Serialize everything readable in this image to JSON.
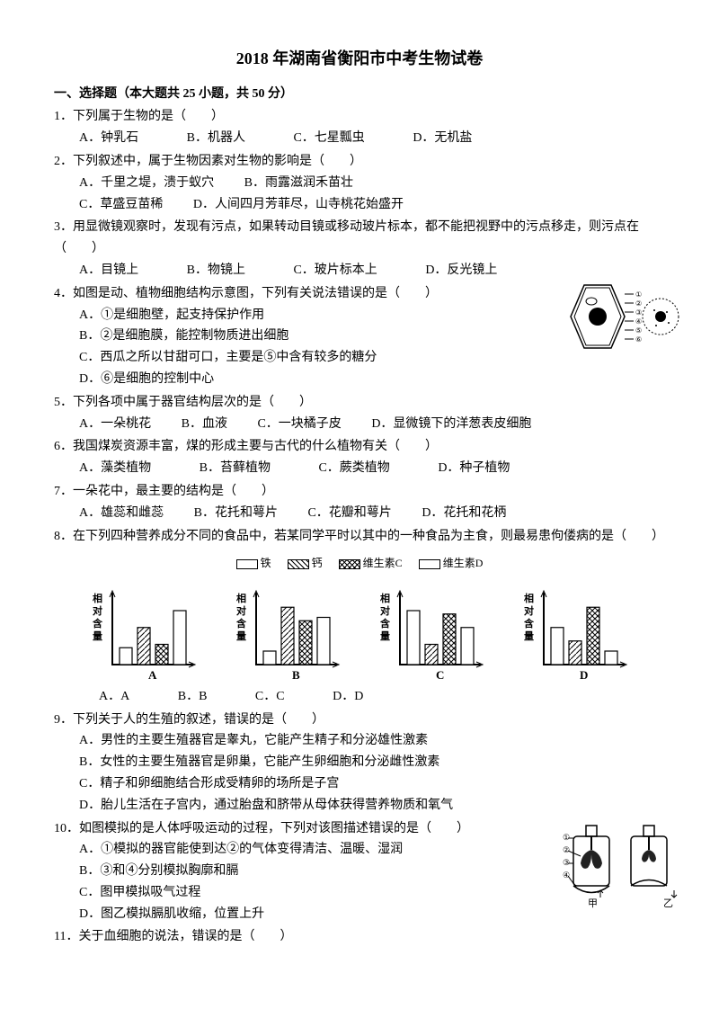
{
  "title": "2018 年湖南省衡阳市中考生物试卷",
  "section1": {
    "header": "一、选择题（本大题共 25 小题，共 50 分）"
  },
  "q1": {
    "text": "1．下列属于生物的是（　　）",
    "a": "A．钟乳石",
    "b": "B．机器人",
    "c": "C．七星瓢虫",
    "d": "D．无机盐"
  },
  "q2": {
    "text": "2．下列叙述中，属于生物因素对生物的影响是（　　）",
    "a": "A．千里之堤，溃于蚁穴",
    "b": "B．雨露滋润禾苗壮",
    "c": "C．草盛豆苗稀",
    "d": "D．人间四月芳菲尽，山寺桃花始盛开"
  },
  "q3": {
    "text": "3．用显微镜观察时，发现有污点，如果转动目镜或移动玻片标本，都不能把视野中的污点移走，则污点在（　　）",
    "a": "A．目镜上",
    "b": "B．物镜上",
    "c": "C．玻片标本上",
    "d": "D．反光镜上"
  },
  "q4": {
    "text": "4．如图是动、植物细胞结构示意图，下列有关说法错误的是（　　）",
    "a": "A．①是细胞壁，起支持保护作用",
    "b": "B．②是细胞膜，能控制物质进出细胞",
    "c": "C．西瓜之所以甘甜可口，主要是⑤中含有较多的糖分",
    "d": "D．⑥是细胞的控制中心"
  },
  "q5": {
    "text": "5．下列各项中属于器官结构层次的是（　　）",
    "a": "A．一朵桃花",
    "b": "B．血液",
    "c": "C．一块橘子皮",
    "d": "D．显微镜下的洋葱表皮细胞"
  },
  "q6": {
    "text": "6．我国煤炭资源丰富，煤的形成主要与古代的什么植物有关（　　）",
    "a": "A．藻类植物",
    "b": "B．苔藓植物",
    "c": "C．蕨类植物",
    "d": "D．种子植物"
  },
  "q7": {
    "text": "7．一朵花中，最主要的结构是（　　）",
    "a": "A．雄蕊和雌蕊",
    "b": "B．花托和萼片",
    "c": "C．花瓣和萼片",
    "d": "D．花托和花柄"
  },
  "q8": {
    "text": "8．在下列四种营养成分不同的食品中，若某同学平时以其中的一种食品为主食，则最易患佝偻病的是（　　）",
    "a": "A．A",
    "b": "B．B",
    "c": "C．C",
    "d": "D．D"
  },
  "legend": {
    "iron": "铁",
    "calcium": "钙",
    "vitc": "维生素C",
    "vitd": "维生素D"
  },
  "chart_labels": {
    "ylabel": "相对含量",
    "a": "A",
    "b": "B",
    "c": "C",
    "d": "D"
  },
  "charts": {
    "type": "bar",
    "ylim": [
      0,
      100
    ],
    "bar_patterns": [
      "solid-white",
      "diagonal-hatch",
      "crosshatch",
      "solid-white"
    ],
    "series": {
      "A": [
        25,
        55,
        30,
        80
      ],
      "B": [
        20,
        85,
        65,
        70
      ],
      "C": [
        80,
        30,
        75,
        55
      ],
      "D": [
        55,
        35,
        85,
        20
      ]
    },
    "axis_color": "#000000",
    "bar_border_color": "#000000",
    "background_color": "#ffffff"
  },
  "q9": {
    "text": "9．下列关于人的生殖的叙述，错误的是（　　）",
    "a": "A．男性的主要生殖器官是睾丸，它能产生精子和分泌雄性激素",
    "b": "B．女性的主要生殖器官是卵巢，它能产生卵细胞和分泌雌性激素",
    "c": "C．精子和卵细胞结合形成受精卵的场所是子宫",
    "d": "D．胎儿生活在子宫内，通过胎盘和脐带从母体获得营养物质和氧气"
  },
  "q10": {
    "text": "10．如图模拟的是人体呼吸运动的过程，下列对该图描述错误的是（　　）",
    "a": "A．①模拟的器官能使到达②的气体变得清洁、温暖、湿润",
    "b": "B．③和④分别模拟胸廓和膈",
    "c": "C．图甲模拟吸气过程",
    "d": "D．图乙模拟膈肌收缩，位置上升"
  },
  "q10_labels": {
    "jar1": "甲",
    "jar2": "乙",
    "n1": "①",
    "n2": "②",
    "n3": "③",
    "n4": "④"
  },
  "q11": {
    "text": "11．关于血细胞的说法，错误的是（　　）"
  }
}
